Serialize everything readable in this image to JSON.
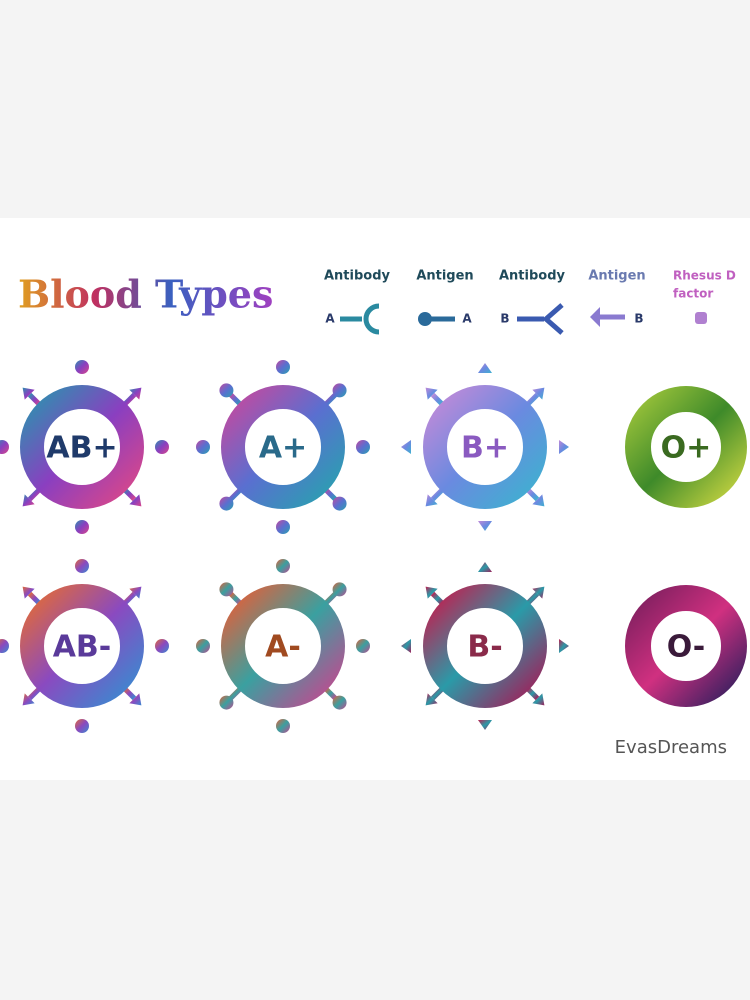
{
  "title": "Blood Types",
  "legend": [
    {
      "label": "Antibody",
      "letter": "A"
    },
    {
      "label": "Antigen",
      "letter": "A"
    },
    {
      "label": "Antibody",
      "letter": "B"
    },
    {
      "label": "Antigen",
      "letter": "B"
    },
    {
      "label": [
        "Rhesus D",
        "factor"
      ]
    }
  ],
  "cells": [
    "AB+",
    "A+",
    "B+",
    "O+",
    "AB-",
    "A-",
    "B-",
    "O-"
  ],
  "signature": "EvasDreams"
}
